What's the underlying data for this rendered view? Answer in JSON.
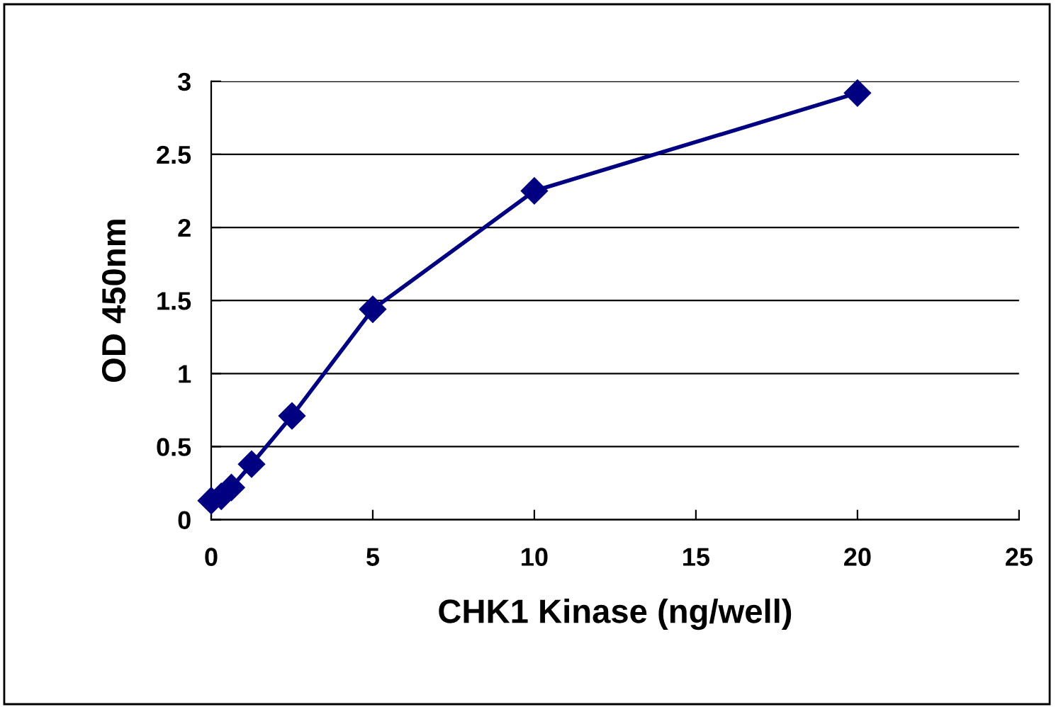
{
  "chart_data": {
    "type": "line",
    "xlabel": "CHK1 Kinase (ng/well)",
    "ylabel": "OD 450nm",
    "x": [
      0,
      0.3125,
      0.625,
      1.25,
      2.5,
      5,
      10,
      20
    ],
    "series": [
      {
        "color": "#000080",
        "values": [
          0.13,
          0.16,
          0.22,
          0.38,
          0.71,
          1.44,
          2.25,
          2.92
        ]
      }
    ],
    "xlim": [
      0,
      25
    ],
    "xticks": [
      0,
      5,
      10,
      15,
      20,
      25
    ],
    "ylim": [
      0,
      3
    ],
    "yticks": [
      0,
      0.5,
      1,
      1.5,
      2,
      2.5,
      3
    ],
    "grid": "y",
    "marker": "diamond",
    "line_style": "solid"
  }
}
